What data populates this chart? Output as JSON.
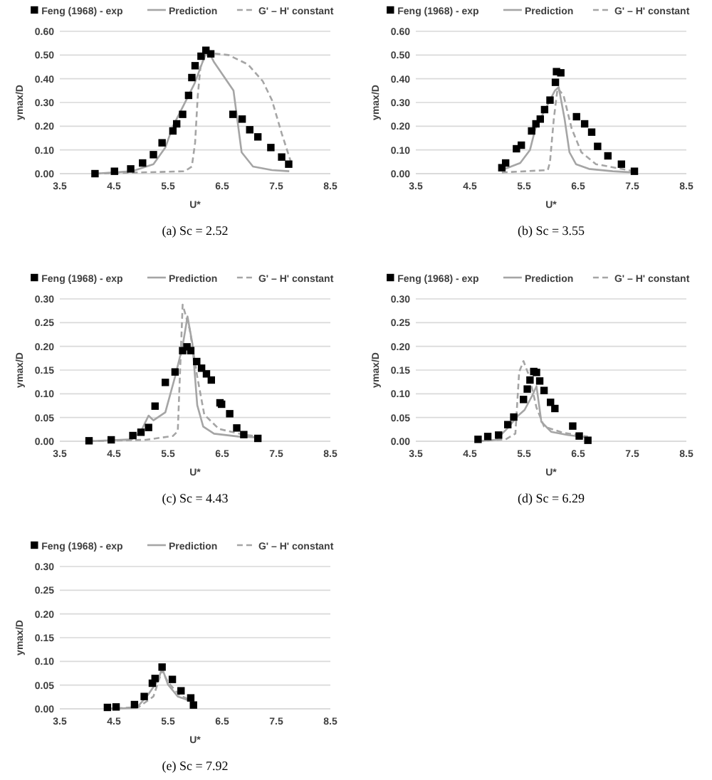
{
  "chart_data": [
    {
      "type": "scatter",
      "xlabel": "U*",
      "ylabel": "ymax/D",
      "annotations": [
        "(a) Sc = 2.52"
      ],
      "legend": "top",
      "grid": "y",
      "xlim": [
        3.5,
        8.5
      ],
      "xticks": [
        3.5,
        4.5,
        5.5,
        6.5,
        7.5,
        8.5
      ],
      "ylim": [
        0,
        0.6
      ],
      "yticks": [
        {
          "value": 0,
          "label": "0.00"
        },
        {
          "value": 0.1,
          "label": "0.10"
        },
        {
          "value": 0.2,
          "label": "0.20"
        },
        {
          "value": 0.3,
          "label": "0.30"
        },
        {
          "value": 0.4,
          "label": "0.40"
        },
        {
          "value": 0.5,
          "label": "0.50"
        },
        {
          "value": 0.6,
          "label": "0.60"
        }
      ],
      "series": [
        {
          "name": "Feng (1968) - exp",
          "type": "scatter",
          "marker": "square",
          "color": "#000000",
          "x": [
            4.15,
            4.51,
            4.81,
            5.03,
            5.23,
            5.39,
            5.59,
            5.66,
            5.77,
            5.88,
            5.94,
            6.0,
            6.11,
            6.2,
            6.29,
            6.7,
            6.87,
            7.01,
            7.16,
            7.4,
            7.6,
            7.73
          ],
          "values": [
            0.0,
            0.01,
            0.02,
            0.045,
            0.08,
            0.13,
            0.18,
            0.21,
            0.25,
            0.33,
            0.405,
            0.455,
            0.495,
            0.52,
            0.505,
            0.25,
            0.23,
            0.185,
            0.155,
            0.11,
            0.07,
            0.04
          ]
        },
        {
          "name": "Prediction",
          "type": "line",
          "line_style": "solid",
          "color": "#a5a5a5",
          "x": [
            4.15,
            4.83,
            5.23,
            5.45,
            5.59,
            5.77,
            5.99,
            6.17,
            6.24,
            6.35,
            6.53,
            6.71,
            6.86,
            7.07,
            7.42,
            7.74
          ],
          "values": [
            0,
            0.01,
            0.04,
            0.11,
            0.2,
            0.28,
            0.38,
            0.49,
            0.52,
            0.47,
            0.41,
            0.35,
            0.09,
            0.03,
            0.015,
            0.01
          ]
        },
        {
          "name": "G' – H' constant",
          "type": "line",
          "line_style": "dashed",
          "color": "#a5a5a5",
          "x": [
            4.15,
            5.81,
            5.94,
            6.0,
            6.05,
            6.1,
            6.21,
            6.62,
            6.98,
            7.25,
            7.42,
            7.6,
            7.77
          ],
          "values": [
            0,
            0.01,
            0.03,
            0.13,
            0.33,
            0.45,
            0.51,
            0.5,
            0.46,
            0.39,
            0.31,
            0.17,
            0.05
          ]
        }
      ]
    },
    {
      "type": "scatter",
      "xlabel": "U*",
      "ylabel": "ymax/D",
      "annotations": [
        "(b) Sc = 3.55"
      ],
      "legend": "top",
      "grid": "y",
      "xlim": [
        3.5,
        8.5
      ],
      "xticks": [
        3.5,
        4.5,
        5.5,
        6.5,
        7.5,
        8.5
      ],
      "ylim": [
        0,
        0.6
      ],
      "yticks": [
        {
          "value": 0,
          "label": "0.00"
        },
        {
          "value": 0.1,
          "label": "0.10"
        },
        {
          "value": 0.2,
          "label": "0.20"
        },
        {
          "value": 0.3,
          "label": "0.30"
        },
        {
          "value": 0.4,
          "label": "0.40"
        },
        {
          "value": 0.5,
          "label": "0.50"
        },
        {
          "value": 0.6,
          "label": "0.60"
        }
      ],
      "series": [
        {
          "name": "Feng (1968) - exp",
          "type": "scatter",
          "marker": "square",
          "color": "#000000",
          "x": [
            5.09,
            5.16,
            5.36,
            5.45,
            5.64,
            5.72,
            5.8,
            5.88,
            5.98,
            6.08,
            6.1,
            6.18,
            6.47,
            6.62,
            6.75,
            6.86,
            7.05,
            7.3,
            7.54
          ],
          "values": [
            0.025,
            0.045,
            0.105,
            0.12,
            0.18,
            0.21,
            0.23,
            0.27,
            0.31,
            0.385,
            0.43,
            0.425,
            0.24,
            0.21,
            0.175,
            0.115,
            0.075,
            0.04,
            0.01
          ]
        },
        {
          "name": "Prediction",
          "type": "line",
          "line_style": "solid",
          "color": "#a5a5a5",
          "x": [
            5.09,
            5.43,
            5.61,
            5.71,
            5.89,
            6.07,
            6.14,
            6.25,
            6.34,
            6.46,
            6.7,
            7.14,
            7.54
          ],
          "values": [
            0.015,
            0.045,
            0.1,
            0.19,
            0.27,
            0.35,
            0.365,
            0.23,
            0.09,
            0.04,
            0.02,
            0.01,
            0.005
          ]
        },
        {
          "name": "G' – H' constant",
          "type": "line",
          "line_style": "dashed",
          "color": "#a5a5a5",
          "x": [
            5.09,
            5.94,
            5.98,
            6.05,
            6.12,
            6.23,
            6.38,
            6.56,
            6.83,
            7.54
          ],
          "values": [
            0.005,
            0.015,
            0.05,
            0.23,
            0.36,
            0.33,
            0.19,
            0.09,
            0.04,
            0.01
          ]
        }
      ]
    },
    {
      "type": "scatter",
      "xlabel": "U*",
      "ylabel": "ymax/D",
      "annotations": [
        "(c) Sc = 4.43"
      ],
      "legend": "top",
      "grid": "y",
      "xlim": [
        3.5,
        8.5
      ],
      "xticks": [
        3.5,
        4.5,
        5.5,
        6.5,
        7.5,
        8.5
      ],
      "ylim": [
        0,
        0.3
      ],
      "yticks": [
        {
          "value": 0,
          "label": "0.00"
        },
        {
          "value": 0.05,
          "label": "0.05"
        },
        {
          "value": 0.1,
          "label": "0.10"
        },
        {
          "value": 0.15,
          "label": "0.15"
        },
        {
          "value": 0.2,
          "label": "0.20"
        },
        {
          "value": 0.25,
          "label": "0.25"
        },
        {
          "value": 0.3,
          "label": "0.30"
        }
      ],
      "series": [
        {
          "name": "Feng (1968) - exp",
          "type": "scatter",
          "marker": "square",
          "color": "#000000",
          "x": [
            4.04,
            4.45,
            4.85,
            5.0,
            5.14,
            5.26,
            5.45,
            5.63,
            5.77,
            5.85,
            5.92,
            6.03,
            6.12,
            6.21,
            6.3,
            6.46,
            6.49,
            6.64,
            6.77,
            6.9,
            7.16
          ],
          "values": [
            0.001,
            0.003,
            0.012,
            0.019,
            0.029,
            0.074,
            0.124,
            0.146,
            0.191,
            0.199,
            0.191,
            0.168,
            0.154,
            0.142,
            0.129,
            0.081,
            0.078,
            0.058,
            0.028,
            0.014,
            0.006
          ]
        },
        {
          "name": "Prediction",
          "type": "line",
          "line_style": "solid",
          "color": "#a5a5a5",
          "x": [
            4.04,
            4.83,
            5.0,
            5.14,
            5.23,
            5.45,
            5.63,
            5.77,
            5.86,
            5.95,
            6.04,
            6.15,
            6.35,
            6.8,
            7.16
          ],
          "values": [
            0,
            0.004,
            0.021,
            0.054,
            0.044,
            0.061,
            0.136,
            0.201,
            0.263,
            0.206,
            0.076,
            0.031,
            0.016,
            0.01,
            0.008
          ]
        },
        {
          "name": "G' – H' constant",
          "type": "line",
          "line_style": "dashed",
          "color": "#a5a5a5",
          "x": [
            4.04,
            5.09,
            5.59,
            5.68,
            5.77,
            5.9,
            6.04,
            6.17,
            6.44,
            6.89,
            7.16
          ],
          "values": [
            0,
            0.003,
            0.011,
            0.021,
            0.288,
            0.236,
            0.136,
            0.056,
            0.026,
            0.014,
            0.01
          ]
        }
      ]
    },
    {
      "type": "scatter",
      "xlabel": "U*",
      "ylabel": "ymax/D",
      "annotations": [
        "(d) Sc = 6.29"
      ],
      "legend": "top",
      "grid": "y",
      "xlim": [
        3.5,
        8.5
      ],
      "xticks": [
        3.5,
        4.5,
        5.5,
        6.5,
        7.5,
        8.5
      ],
      "ylim": [
        0,
        0.3
      ],
      "yticks": [
        {
          "value": 0,
          "label": "0.00"
        },
        {
          "value": 0.05,
          "label": "0.05"
        },
        {
          "value": 0.1,
          "label": "0.10"
        },
        {
          "value": 0.15,
          "label": "0.15"
        },
        {
          "value": 0.2,
          "label": "0.20"
        },
        {
          "value": 0.25,
          "label": "0.25"
        },
        {
          "value": 0.3,
          "label": "0.30"
        }
      ],
      "series": [
        {
          "name": "Feng (1968) - exp",
          "type": "scatter",
          "marker": "square",
          "color": "#000000",
          "x": [
            4.65,
            4.83,
            5.03,
            5.2,
            5.31,
            5.49,
            5.56,
            5.61,
            5.68,
            5.73,
            5.79,
            5.87,
            5.99,
            6.07,
            6.4,
            6.52,
            6.68
          ],
          "values": [
            0.004,
            0.01,
            0.013,
            0.035,
            0.051,
            0.088,
            0.11,
            0.129,
            0.147,
            0.145,
            0.127,
            0.107,
            0.082,
            0.069,
            0.032,
            0.011,
            0.002
          ]
        },
        {
          "name": "Prediction",
          "type": "line",
          "line_style": "solid",
          "color": "#a5a5a5",
          "x": [
            4.65,
            4.98,
            5.2,
            5.38,
            5.51,
            5.65,
            5.73,
            5.82,
            6.0,
            6.31,
            6.68
          ],
          "values": [
            0,
            0.003,
            0.028,
            0.053,
            0.066,
            0.096,
            0.116,
            0.041,
            0.02,
            0.013,
            0.008
          ]
        },
        {
          "name": "G' – H' constant",
          "type": "line",
          "line_style": "dashed",
          "color": "#a5a5a5",
          "x": [
            4.65,
            5.16,
            5.34,
            5.41,
            5.49,
            5.6,
            5.73,
            5.87,
            6.22,
            6.68
          ],
          "values": [
            0,
            0.004,
            0.016,
            0.146,
            0.169,
            0.136,
            0.071,
            0.031,
            0.018,
            0.01
          ]
        }
      ]
    },
    {
      "type": "scatter",
      "xlabel": "U*",
      "ylabel": "ymax/D",
      "annotations": [
        "(e) Sc = 7.92"
      ],
      "legend": "top",
      "grid": "y",
      "xlim": [
        3.5,
        8.5
      ],
      "xticks": [
        3.5,
        4.5,
        5.5,
        6.5,
        7.5,
        8.5
      ],
      "ylim": [
        0,
        0.3
      ],
      "yticks": [
        {
          "value": 0,
          "label": "0.00"
        },
        {
          "value": 0.05,
          "label": "0.05"
        },
        {
          "value": 0.1,
          "label": "0.10"
        },
        {
          "value": 0.15,
          "label": "0.15"
        },
        {
          "value": 0.2,
          "label": "0.20"
        },
        {
          "value": 0.25,
          "label": "0.25"
        },
        {
          "value": 0.3,
          "label": "0.30"
        }
      ],
      "series": [
        {
          "name": "Feng (1968) - exp",
          "type": "scatter",
          "marker": "square",
          "color": "#000000",
          "x": [
            4.38,
            4.54,
            4.88,
            5.06,
            5.21,
            5.26,
            5.39,
            5.58,
            5.74,
            5.92,
            5.97
          ],
          "values": [
            0.003,
            0.004,
            0.009,
            0.026,
            0.054,
            0.064,
            0.088,
            0.062,
            0.038,
            0.023,
            0.008
          ]
        },
        {
          "name": "Prediction",
          "type": "line",
          "line_style": "solid",
          "color": "#a5a5a5",
          "x": [
            4.38,
            4.92,
            5.14,
            5.32,
            5.39,
            5.5,
            5.68,
            5.97
          ],
          "values": [
            0,
            0.002,
            0.031,
            0.061,
            0.086,
            0.051,
            0.026,
            0.014
          ]
        },
        {
          "name": "G' – H' constant",
          "type": "line",
          "line_style": "dashed",
          "color": "#a5a5a5",
          "x": [
            4.38,
            4.96,
            5.23,
            5.39,
            5.5,
            5.72,
            5.97
          ],
          "values": [
            0,
            0.004,
            0.026,
            0.081,
            0.056,
            0.028,
            0.016
          ]
        }
      ]
    }
  ]
}
